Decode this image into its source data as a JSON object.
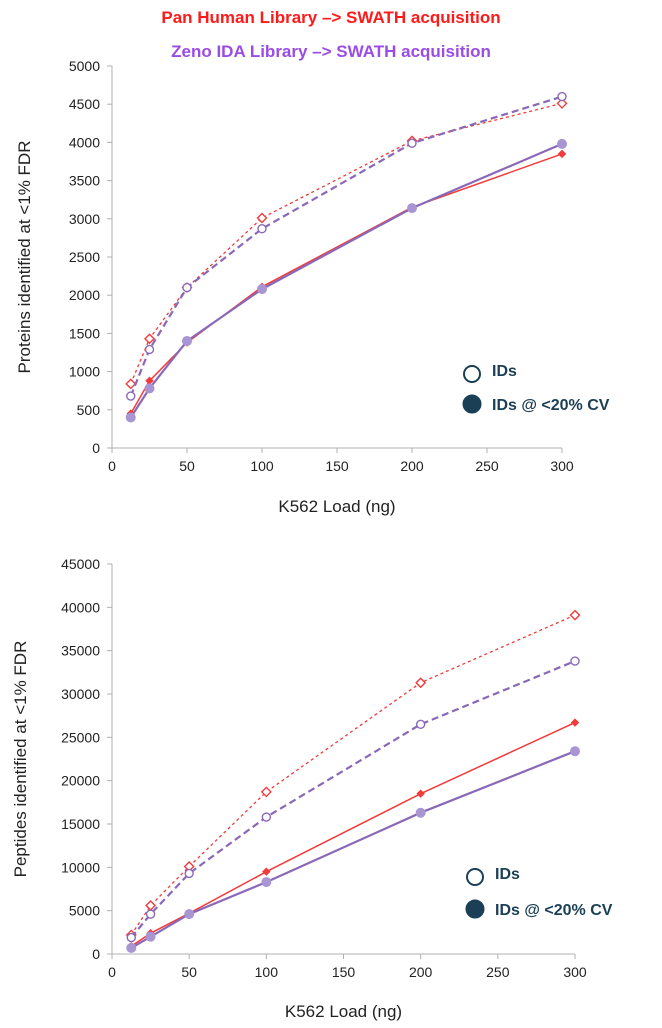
{
  "titles": {
    "line1": "Pan Human Library –> SWATH acquisition",
    "line2": "Zeno IDA Library –> SWATH acquisition"
  },
  "colors": {
    "pan_human": "#f23b3b",
    "zeno_ida": "#8a68b8",
    "title1": "#ff1a1a",
    "title2": "#9a4de6",
    "legend": "#1b3f55",
    "axis": "#b0b0b0"
  },
  "legend": {
    "open_label": "IDs",
    "filled_label": "IDs @ <20% CV"
  },
  "chart_data": [
    {
      "type": "line",
      "xlabel": "K562 Load (ng)",
      "ylabel": "Proteins identified at <1% FDR",
      "xlim": [
        0,
        300
      ],
      "ylim": [
        0,
        5000
      ],
      "xticks": [
        "0",
        "50",
        "100",
        "150",
        "200",
        "250",
        "300"
      ],
      "yticks": [
        "0",
        "500",
        "1000",
        "1500",
        "2000",
        "2500",
        "3000",
        "3500",
        "4000",
        "4500",
        "5000"
      ],
      "grid": false,
      "legend_position": "bottom-right",
      "x": [
        12.5,
        25,
        50,
        100,
        200,
        300
      ],
      "series": [
        {
          "library": "pan_human",
          "measure": "IDs",
          "marker": "open-diamond",
          "line": "dotted",
          "values": [
            840,
            1430,
            2100,
            3010,
            4020,
            4510
          ]
        },
        {
          "library": "zeno_ida",
          "measure": "IDs",
          "marker": "open-circle",
          "line": "dashed",
          "values": [
            680,
            1290,
            2100,
            2870,
            3990,
            4600
          ]
        },
        {
          "library": "pan_human",
          "measure": "IDs @ <20% CV",
          "marker": "filled-diamond",
          "line": "solid",
          "values": [
            450,
            880,
            1380,
            2110,
            3150,
            3850
          ]
        },
        {
          "library": "zeno_ida",
          "measure": "IDs @ <20% CV",
          "marker": "filled-circle",
          "line": "solid",
          "values": [
            400,
            780,
            1400,
            2080,
            3140,
            3980
          ]
        }
      ]
    },
    {
      "type": "line",
      "xlabel": "K562 Load (ng)",
      "ylabel": "Peptides identified at <1% FDR",
      "xlim": [
        0,
        300
      ],
      "ylim": [
        0,
        45000
      ],
      "xticks": [
        "0",
        "50",
        "100",
        "150",
        "200",
        "250",
        "300"
      ],
      "yticks": [
        "0",
        "5000",
        "10000",
        "15000",
        "20000",
        "25000",
        "30000",
        "35000",
        "40000",
        "45000"
      ],
      "grid": false,
      "legend_position": "bottom-right",
      "x": [
        12.5,
        25,
        50,
        100,
        200,
        300
      ],
      "series": [
        {
          "library": "pan_human",
          "measure": "IDs",
          "marker": "open-diamond",
          "line": "dotted",
          "values": [
            2200,
            5600,
            10100,
            18700,
            31300,
            39100
          ]
        },
        {
          "library": "zeno_ida",
          "measure": "IDs",
          "marker": "open-circle",
          "line": "dashed",
          "values": [
            1900,
            4600,
            9300,
            15800,
            26500,
            33800
          ]
        },
        {
          "library": "pan_human",
          "measure": "IDs @ <20% CV",
          "marker": "filled-diamond",
          "line": "solid",
          "values": [
            900,
            2400,
            4700,
            9500,
            18500,
            26700
          ]
        },
        {
          "library": "zeno_ida",
          "measure": "IDs @ <20% CV",
          "marker": "filled-circle",
          "line": "solid",
          "values": [
            700,
            2000,
            4600,
            8300,
            16300,
            23400
          ]
        }
      ]
    }
  ]
}
